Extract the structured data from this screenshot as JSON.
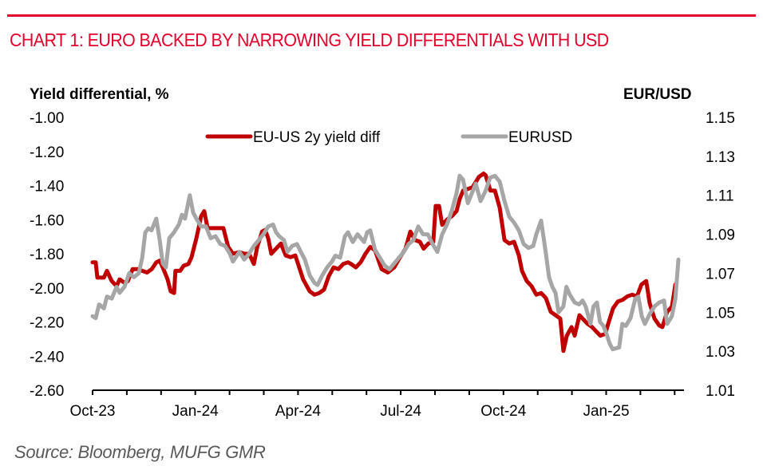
{
  "header": {
    "title": "CHART 1: EURO BACKED BY NARROWING YIELD DIFFERENTIALS WITH USD"
  },
  "footer": {
    "source": "Source: Bloomberg, MUFG GMR"
  },
  "colors": {
    "accent": "#e4002b",
    "yield_series": "#c00000",
    "eurusd_series": "#a6a6a6"
  },
  "chart_data": {
    "type": "line",
    "title": "CHART 1: EURO BACKED BY NARROWING YIELD DIFFERENTIALS WITH USD",
    "xlabel": "",
    "ylabel": "Yield differential, %",
    "y2label": "EUR/USD",
    "ylim": [
      -2.6,
      -1.0
    ],
    "y2lim": [
      1.01,
      1.15
    ],
    "yticks": [
      "-1.00",
      "-1.20",
      "-1.40",
      "-1.60",
      "-1.80",
      "-2.00",
      "-2.20",
      "-2.40",
      "-2.60"
    ],
    "y2ticks": [
      "1.15",
      "1.13",
      "1.11",
      "1.09",
      "1.07",
      "1.05",
      "1.03",
      "1.01"
    ],
    "xticks": [
      "Oct-23",
      "Jan-24",
      "Apr-24",
      "Jul-24",
      "Oct-24",
      "Jan-25"
    ],
    "x_unit": "months since Oct-2023",
    "xlim": [
      0,
      17.3
    ],
    "grid": false,
    "legend": {
      "position": "top-center",
      "entries": [
        "EU-US 2y yield diff",
        "EURUSD"
      ]
    },
    "series": [
      {
        "name": "EU-US 2y yield diff",
        "axis": "left",
        "x": [
          0,
          0.09,
          0.14,
          0.33,
          0.42,
          0.56,
          0.7,
          0.79,
          0.93,
          1.03,
          1.17,
          1.31,
          1.45,
          1.59,
          1.73,
          1.86,
          1.96,
          2.05,
          2.19,
          2.28,
          2.38,
          2.42,
          2.56,
          2.66,
          2.8,
          2.89,
          3.03,
          3.17,
          3.26,
          3.36,
          3.59,
          3.82,
          3.96,
          4.1,
          4.29,
          4.43,
          4.57,
          4.71,
          4.81,
          4.95,
          5.04,
          5.13,
          5.22,
          5.36,
          5.5,
          5.64,
          5.78,
          5.92,
          6.15,
          6.34,
          6.48,
          6.62,
          6.76,
          6.9,
          7.04,
          7.18,
          7.32,
          7.46,
          7.55,
          7.69,
          7.83,
          7.97,
          8.11,
          8.25,
          8.44,
          8.62,
          8.81,
          8.95,
          9.14,
          9.28,
          9.42,
          9.56,
          9.67,
          9.81,
          9.95,
          10.02,
          10.12,
          10.21,
          10.35,
          10.49,
          10.63,
          10.72,
          10.82,
          10.96,
          11.1,
          11.19,
          11.28,
          11.42,
          11.48,
          11.62,
          11.75,
          11.89,
          12.03,
          12.17,
          12.31,
          12.45,
          12.54,
          12.68,
          12.82,
          12.96,
          13.1,
          13.24,
          13.38,
          13.66,
          13.75,
          13.85,
          13.99,
          14.08,
          14.22,
          14.31,
          14.45,
          14.59,
          14.73,
          14.83,
          14.97,
          15.06,
          15.2,
          15.34,
          15.48,
          15.62,
          15.76,
          15.9,
          16.03,
          16.17,
          16.27,
          16.41,
          16.55,
          16.64,
          16.78,
          16.92,
          17.02
        ],
        "values": [
          -1.85,
          -1.85,
          -1.94,
          -1.94,
          -1.9,
          -1.96,
          -1.99,
          -1.95,
          -1.97,
          -1.96,
          -1.89,
          -1.89,
          -1.9,
          -1.91,
          -1.89,
          -1.85,
          -1.84,
          -1.88,
          -1.95,
          -2.02,
          -2.03,
          -1.9,
          -1.9,
          -1.87,
          -1.86,
          -1.82,
          -1.71,
          -1.58,
          -1.55,
          -1.65,
          -1.65,
          -1.65,
          -1.76,
          -1.8,
          -1.79,
          -1.8,
          -1.8,
          -1.86,
          -1.76,
          -1.67,
          -1.66,
          -1.71,
          -1.8,
          -1.77,
          -1.74,
          -1.81,
          -1.82,
          -1.81,
          -1.95,
          -2.02,
          -2.04,
          -2.03,
          -2.01,
          -1.93,
          -1.88,
          -1.89,
          -1.86,
          -1.85,
          -1.86,
          -1.88,
          -1.85,
          -1.8,
          -1.76,
          -1.78,
          -1.89,
          -1.91,
          -1.88,
          -1.83,
          -1.77,
          -1.67,
          -1.72,
          -1.73,
          -1.77,
          -1.74,
          -1.73,
          -1.52,
          -1.52,
          -1.63,
          -1.6,
          -1.58,
          -1.55,
          -1.48,
          -1.43,
          -1.42,
          -1.41,
          -1.38,
          -1.35,
          -1.33,
          -1.34,
          -1.43,
          -1.43,
          -1.53,
          -1.72,
          -1.74,
          -1.73,
          -1.81,
          -1.9,
          -1.96,
          -1.99,
          -2.04,
          -2.03,
          -2.06,
          -2.14,
          -2.18,
          -2.37,
          -2.28,
          -2.23,
          -2.28,
          -2.16,
          -2.18,
          -2.21,
          -2.23,
          -2.26,
          -2.28,
          -2.27,
          -2.21,
          -2.12,
          -2.08,
          -2.07,
          -2.05,
          -2.04,
          -2.05,
          -1.98,
          -1.96,
          -2.09,
          -2.18,
          -2.22,
          -2.23,
          -2.14,
          -2.11,
          -1.98
        ]
      },
      {
        "name": "EURUSD",
        "axis": "right",
        "x": [
          0,
          0.09,
          0.19,
          0.33,
          0.42,
          0.56,
          0.7,
          0.79,
          0.93,
          1.07,
          1.21,
          1.35,
          1.45,
          1.54,
          1.63,
          1.72,
          1.86,
          1.96,
          2.05,
          2.14,
          2.24,
          2.38,
          2.52,
          2.61,
          2.7,
          2.84,
          2.94,
          3.03,
          3.17,
          3.31,
          3.45,
          3.59,
          3.73,
          3.87,
          4.01,
          4.1,
          4.29,
          4.43,
          4.57,
          4.71,
          4.85,
          4.99,
          5.13,
          5.27,
          5.36,
          5.45,
          5.59,
          5.69,
          5.83,
          5.97,
          6.11,
          6.2,
          6.34,
          6.48,
          6.57,
          6.71,
          6.85,
          6.99,
          7.09,
          7.23,
          7.37,
          7.46,
          7.6,
          7.74,
          7.93,
          8.02,
          8.11,
          8.25,
          8.39,
          8.53,
          8.67,
          8.81,
          8.95,
          9.09,
          9.23,
          9.37,
          9.51,
          9.65,
          9.79,
          9.93,
          10.07,
          10.21,
          10.35,
          10.49,
          10.63,
          10.72,
          10.82,
          10.96,
          11.1,
          11.19,
          11.33,
          11.47,
          11.61,
          11.75,
          11.89,
          12.03,
          12.17,
          12.31,
          12.45,
          12.59,
          12.73,
          12.87,
          12.96,
          13.1,
          13.24,
          13.33,
          13.43,
          13.52,
          13.61,
          13.75,
          13.84,
          13.94,
          14.08,
          14.21,
          14.31,
          14.4,
          14.54,
          14.63,
          14.73,
          14.82,
          14.92,
          15.01,
          15.1,
          15.19,
          15.38,
          15.47,
          15.57,
          15.71,
          15.85,
          15.94,
          16.04,
          16.13,
          16.27,
          16.41,
          16.55,
          16.69,
          16.78,
          16.92,
          17.02,
          17.11
        ],
        "values": [
          1.048,
          1.047,
          1.054,
          1.052,
          1.058,
          1.057,
          1.063,
          1.06,
          1.063,
          1.07,
          1.068,
          1.07,
          1.078,
          1.091,
          1.093,
          1.092,
          1.098,
          1.087,
          1.075,
          1.073,
          1.088,
          1.091,
          1.095,
          1.1,
          1.098,
          1.11,
          1.101,
          1.098,
          1.094,
          1.094,
          1.088,
          1.089,
          1.085,
          1.084,
          1.08,
          1.076,
          1.081,
          1.077,
          1.08,
          1.084,
          1.087,
          1.09,
          1.094,
          1.095,
          1.091,
          1.089,
          1.087,
          1.081,
          1.084,
          1.085,
          1.08,
          1.077,
          1.069,
          1.065,
          1.064,
          1.069,
          1.073,
          1.076,
          1.079,
          1.078,
          1.089,
          1.091,
          1.086,
          1.09,
          1.086,
          1.091,
          1.092,
          1.082,
          1.078,
          1.074,
          1.072,
          1.075,
          1.078,
          1.081,
          1.085,
          1.087,
          1.094,
          1.09,
          1.09,
          1.085,
          1.081,
          1.09,
          1.095,
          1.102,
          1.111,
          1.12,
          1.118,
          1.106,
          1.112,
          1.116,
          1.107,
          1.112,
          1.119,
          1.12,
          1.117,
          1.107,
          1.099,
          1.096,
          1.092,
          1.085,
          1.083,
          1.084,
          1.09,
          1.097,
          1.08,
          1.068,
          1.063,
          1.06,
          1.05,
          1.053,
          1.063,
          1.059,
          1.055,
          1.054,
          1.056,
          1.053,
          1.044,
          1.053,
          1.055,
          1.045,
          1.043,
          1.039,
          1.034,
          1.031,
          1.032,
          1.044,
          1.043,
          1.047,
          1.057,
          1.058,
          1.048,
          1.044,
          1.049,
          1.053,
          1.055,
          1.056,
          1.044,
          1.048,
          1.057,
          1.077
        ]
      }
    ]
  }
}
